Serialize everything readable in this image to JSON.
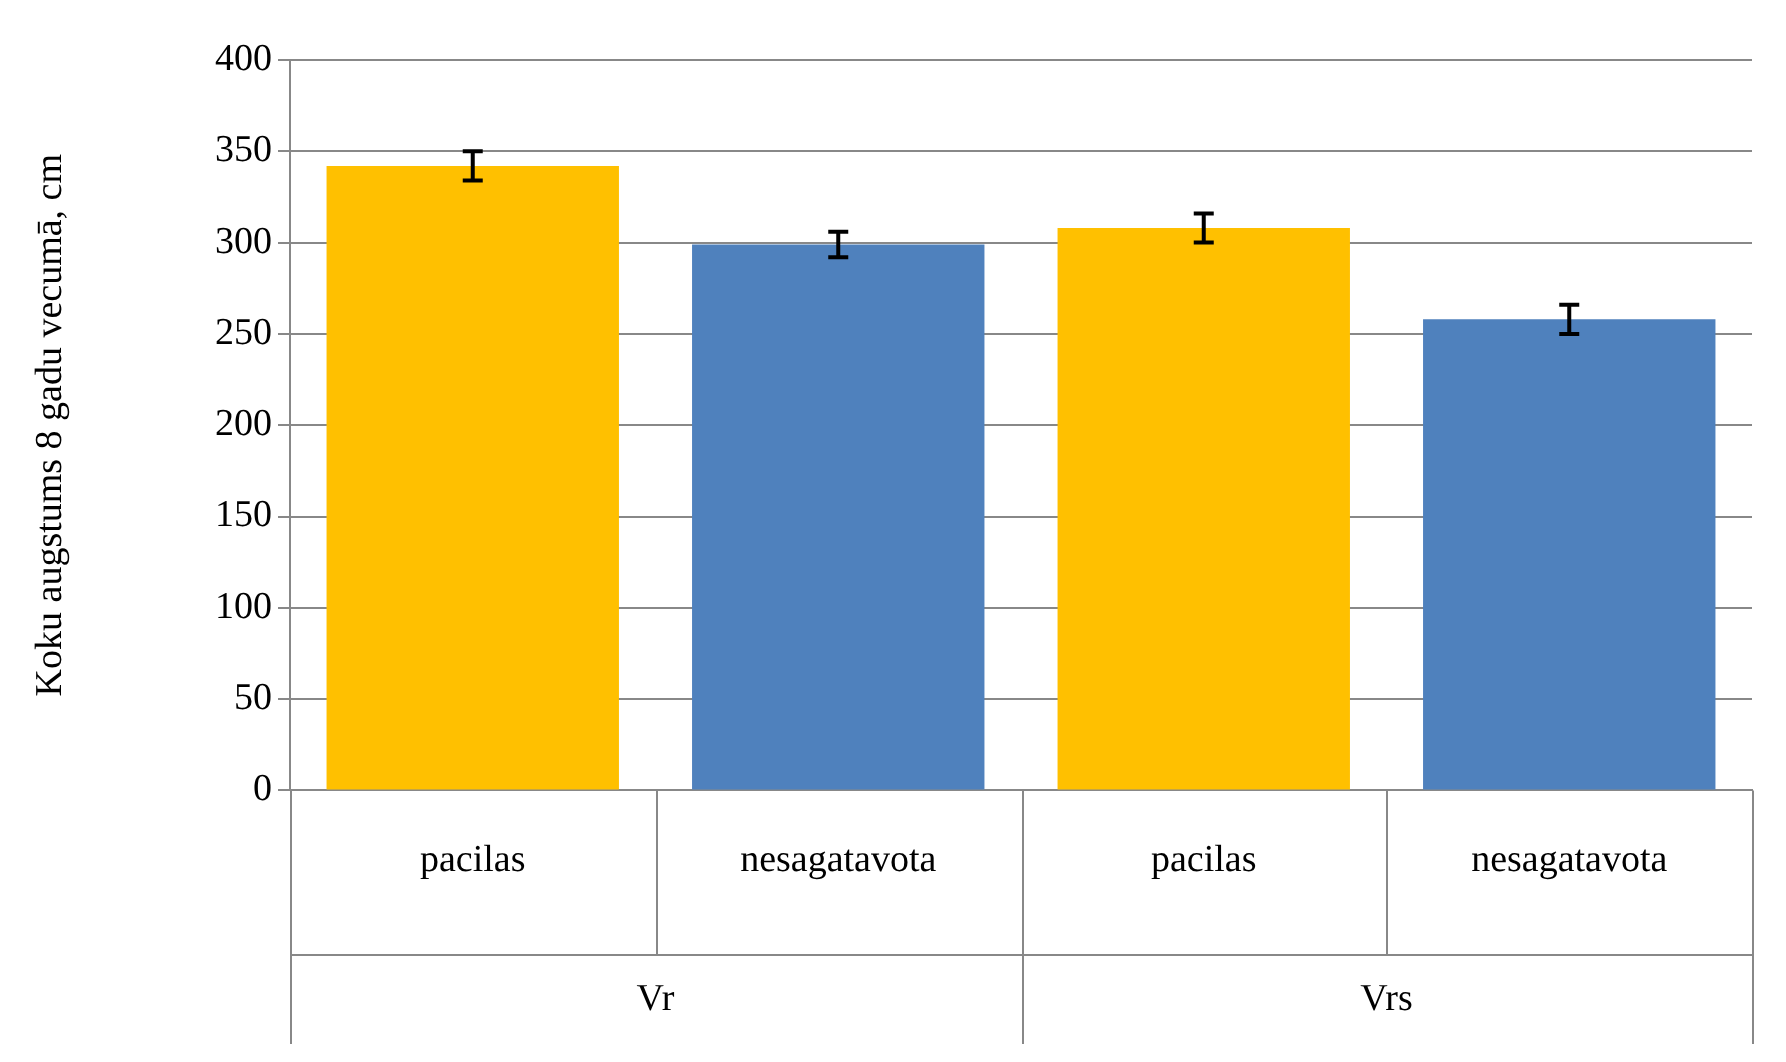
{
  "chart_data": {
    "type": "bar",
    "ylabel": "Koku augstums 8 gadu vecumā, cm",
    "categories": [
      "pacilas",
      "nesagatavota",
      "pacilas",
      "nesagatavota"
    ],
    "values": [
      342,
      299,
      308,
      258
    ],
    "colors": [
      "#ffc000",
      "#4f81bd",
      "#ffc000",
      "#4f81bd"
    ],
    "errors": [
      8,
      7,
      8,
      8
    ],
    "ylim": [
      0,
      400
    ],
    "yticks": [
      0,
      50,
      100,
      150,
      200,
      250,
      300,
      350,
      400
    ],
    "grid": "y",
    "legend": false,
    "annotations": [
      "Vr",
      "Vrs"
    ]
  }
}
